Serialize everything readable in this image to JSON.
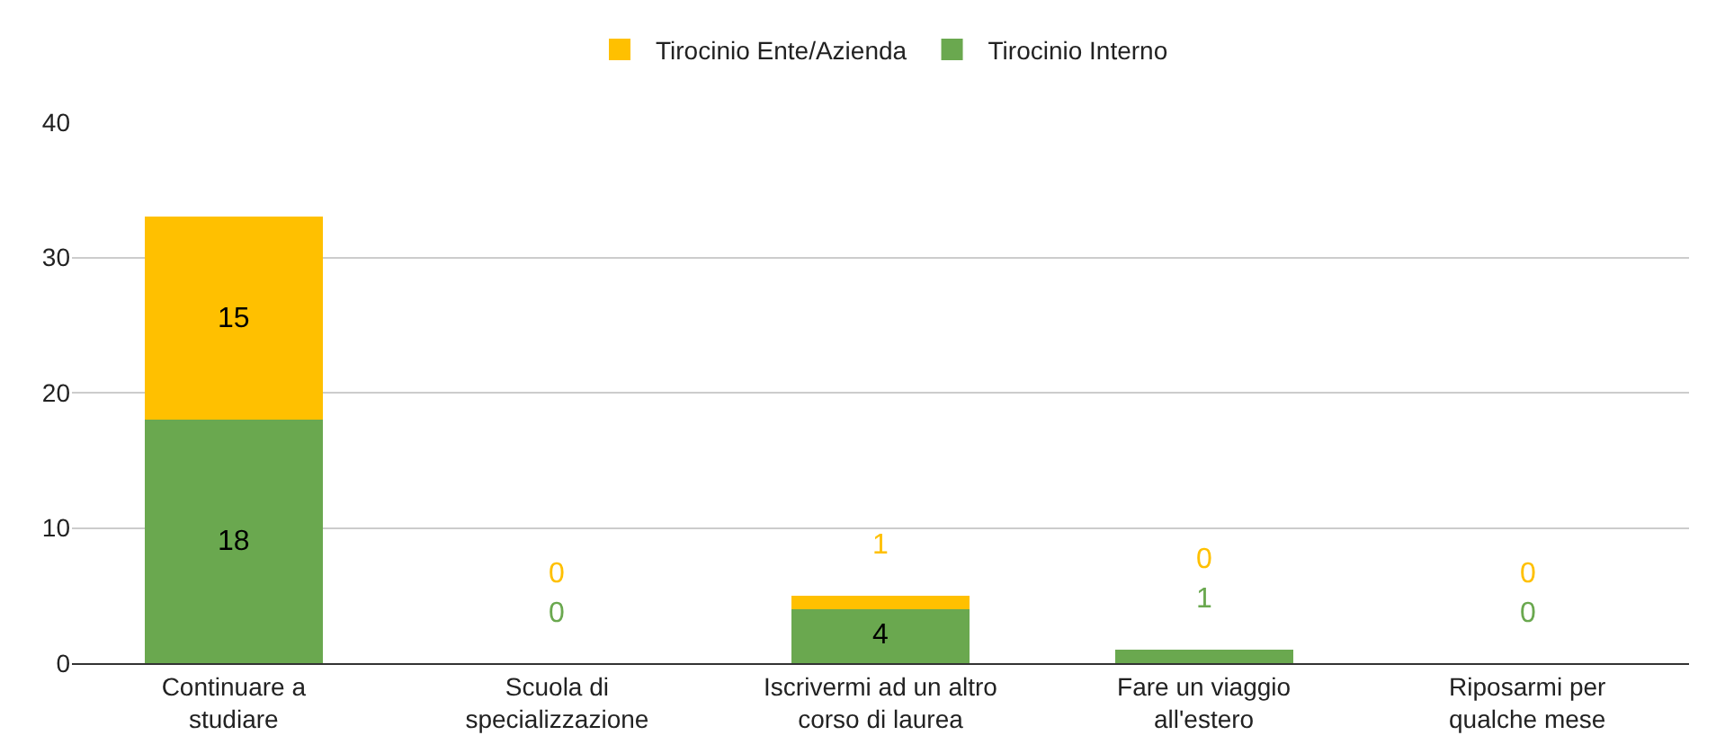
{
  "chart_data": {
    "type": "bar",
    "stacked": true,
    "categories": [
      "Continuare a\nstudiare",
      "Scuola di\nspecializzazione",
      "Iscrivermi ad un altro\ncorso di laurea",
      "Fare un viaggio\nall'estero",
      "Riposarmi per\nqualche mese"
    ],
    "series": [
      {
        "name": "Tirocinio Interno",
        "color": "#6aa84f",
        "values": [
          18,
          0,
          4,
          1,
          0
        ]
      },
      {
        "name": "Tirocinio Ente/Azienda",
        "color": "#ffc000",
        "values": [
          15,
          0,
          1,
          0,
          0
        ]
      }
    ],
    "ylim": [
      0,
      40
    ],
    "yticks": [
      0,
      10,
      20,
      30,
      40
    ],
    "grid": "y",
    "legend": "top",
    "data_labels": true
  }
}
